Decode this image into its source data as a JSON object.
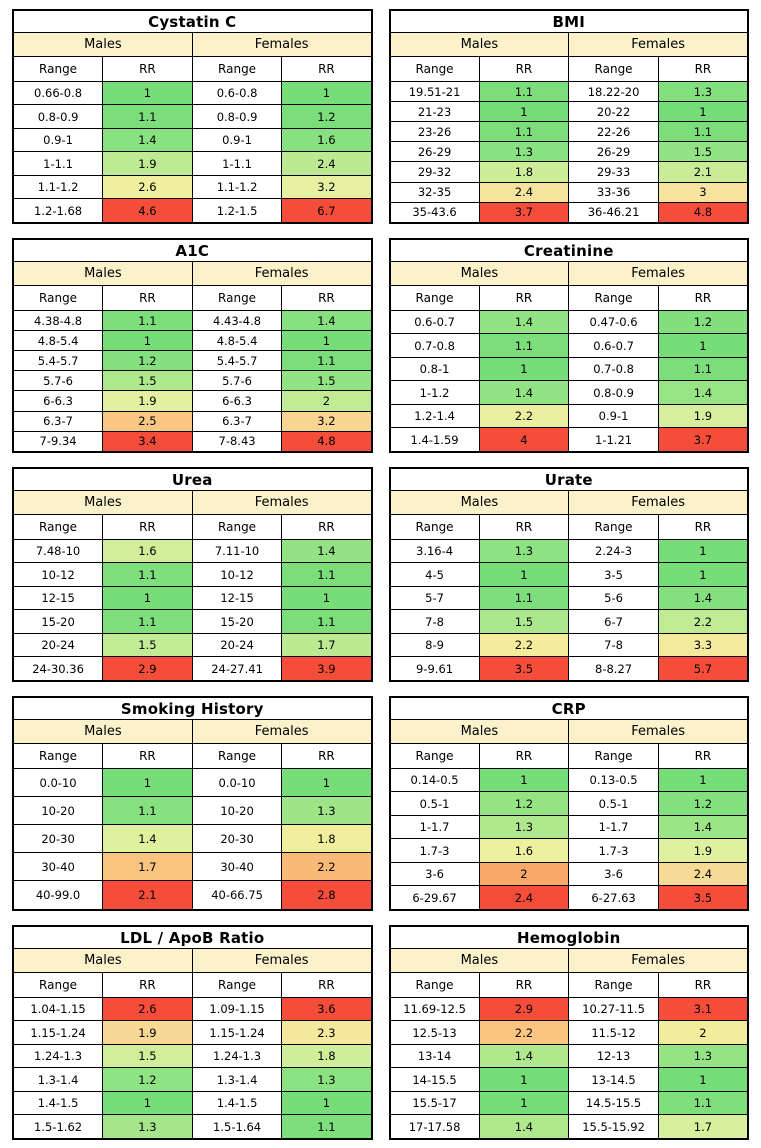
{
  "labels": {
    "males": "Males",
    "females": "Females",
    "range": "Range",
    "rr": "RR"
  },
  "style": {
    "group_header_bg": "#FBF1CA",
    "border_color": "#000000",
    "range_cell_bg": "#FFFFFF",
    "best_rr_color": "#77DD78",
    "worst_rr_color": "#F44D3A"
  },
  "colormap": {
    "note": "RR cell background: t = (rr - column_min) / (column_max - column_min), interpolated over stops",
    "stops": [
      [
        0.0,
        [
          119,
          221,
          120
        ]
      ],
      [
        0.1,
        [
          133,
          225,
          127
        ]
      ],
      [
        0.18,
        [
          163,
          230,
          137
        ]
      ],
      [
        0.25,
        [
          190,
          234,
          147
        ]
      ],
      [
        0.32,
        [
          212,
          238,
          156
        ]
      ],
      [
        0.4,
        [
          233,
          241,
          161
        ]
      ],
      [
        0.47,
        [
          242,
          238,
          156
        ]
      ],
      [
        0.53,
        [
          246,
          226,
          158
        ]
      ],
      [
        0.6,
        [
          249,
          207,
          138
        ]
      ],
      [
        0.68,
        [
          249,
          181,
          115
        ]
      ],
      [
        0.8,
        [
          247,
          136,
          80
        ]
      ],
      [
        1.0,
        [
          244,
          77,
          58
        ]
      ]
    ]
  },
  "chart_data": [
    {
      "type": "table",
      "title": "Cystatin C",
      "groups": [
        "Males",
        "Females"
      ],
      "columns": [
        "Range",
        "RR",
        "Range",
        "RR"
      ],
      "males": [
        [
          "0.66-0.8",
          1
        ],
        [
          "0.8-0.9",
          1.1
        ],
        [
          "0.9-1",
          1.4
        ],
        [
          "1-1.1",
          1.9
        ],
        [
          "1.1-1.2",
          2.6
        ],
        [
          "1.2-1.68",
          4.6
        ]
      ],
      "females": [
        [
          "0.6-0.8",
          1
        ],
        [
          "0.8-0.9",
          1.2
        ],
        [
          "0.9-1",
          1.6
        ],
        [
          "1-1.1",
          2.4
        ],
        [
          "1.1-1.2",
          3.2
        ],
        [
          "1.2-1.5",
          6.7
        ]
      ]
    },
    {
      "type": "table",
      "title": "BMI",
      "groups": [
        "Males",
        "Females"
      ],
      "columns": [
        "Range",
        "RR",
        "Range",
        "RR"
      ],
      "males": [
        [
          "19.51-21",
          1.1
        ],
        [
          "21-23",
          1
        ],
        [
          "23-26",
          1.1
        ],
        [
          "26-29",
          1.3
        ],
        [
          "29-32",
          1.8
        ],
        [
          "32-35",
          2.4
        ],
        [
          "35-43.6",
          3.7
        ]
      ],
      "females": [
        [
          "18.22-20",
          1.3
        ],
        [
          "20-22",
          1
        ],
        [
          "22-26",
          1.1
        ],
        [
          "26-29",
          1.5
        ],
        [
          "29-33",
          2.1
        ],
        [
          "33-36",
          3
        ],
        [
          "36-46.21",
          4.8
        ]
      ]
    },
    {
      "type": "table",
      "title": "A1C",
      "groups": [
        "Males",
        "Females"
      ],
      "columns": [
        "Range",
        "RR",
        "Range",
        "RR"
      ],
      "males": [
        [
          "4.38-4.8",
          1.1
        ],
        [
          "4.8-5.4",
          1
        ],
        [
          "5.4-5.7",
          1.2
        ],
        [
          "5.7-6",
          1.5
        ],
        [
          "6-6.3",
          1.9
        ],
        [
          "6.3-7",
          2.5
        ],
        [
          "7-9.34",
          3.4
        ]
      ],
      "females": [
        [
          "4.43-4.8",
          1.4
        ],
        [
          "4.8-5.4",
          1
        ],
        [
          "5.4-5.7",
          1.1
        ],
        [
          "5.7-6",
          1.5
        ],
        [
          "6-6.3",
          2
        ],
        [
          "6.3-7",
          3.2
        ],
        [
          "7-8.43",
          4.8
        ]
      ]
    },
    {
      "type": "table",
      "title": "Creatinine",
      "groups": [
        "Males",
        "Females"
      ],
      "columns": [
        "Range",
        "RR",
        "Range",
        "RR"
      ],
      "males": [
        [
          "0.6-0.7",
          1.4
        ],
        [
          "0.7-0.8",
          1.1
        ],
        [
          "0.8-1",
          1
        ],
        [
          "1-1.2",
          1.4
        ],
        [
          "1.2-1.4",
          2.2
        ],
        [
          "1.4-1.59",
          4
        ]
      ],
      "females": [
        [
          "0.47-0.6",
          1.2
        ],
        [
          "0.6-0.7",
          1
        ],
        [
          "0.7-0.8",
          1.1
        ],
        [
          "0.8-0.9",
          1.4
        ],
        [
          "0.9-1",
          1.9
        ],
        [
          "1-1.21",
          3.7
        ]
      ]
    },
    {
      "type": "table",
      "title": "Urea",
      "groups": [
        "Males",
        "Females"
      ],
      "columns": [
        "Range",
        "RR",
        "Range",
        "RR"
      ],
      "males": [
        [
          "7.48-10",
          1.6
        ],
        [
          "10-12",
          1.1
        ],
        [
          "12-15",
          1
        ],
        [
          "15-20",
          1.1
        ],
        [
          "20-24",
          1.5
        ],
        [
          "24-30.36",
          2.9
        ]
      ],
      "females": [
        [
          "7.11-10",
          1.4
        ],
        [
          "10-12",
          1.1
        ],
        [
          "12-15",
          1
        ],
        [
          "15-20",
          1.1
        ],
        [
          "20-24",
          1.7
        ],
        [
          "24-27.41",
          3.9
        ]
      ]
    },
    {
      "type": "table",
      "title": "Urate",
      "groups": [
        "Males",
        "Females"
      ],
      "columns": [
        "Range",
        "RR",
        "Range",
        "RR"
      ],
      "males": [
        [
          "3.16-4",
          1.3
        ],
        [
          "4-5",
          1
        ],
        [
          "5-7",
          1.1
        ],
        [
          "7-8",
          1.5
        ],
        [
          "8-9",
          2.2
        ],
        [
          "9-9.61",
          3.5
        ]
      ],
      "females": [
        [
          "2.24-3",
          1
        ],
        [
          "3-5",
          1
        ],
        [
          "5-6",
          1.4
        ],
        [
          "6-7",
          2.2
        ],
        [
          "7-8",
          3.3
        ],
        [
          "8-8.27",
          5.7
        ]
      ]
    },
    {
      "type": "table",
      "title": "Smoking History",
      "groups": [
        "Males",
        "Females"
      ],
      "columns": [
        "Range",
        "RR",
        "Range",
        "RR"
      ],
      "males": [
        [
          "0.0-10",
          1
        ],
        [
          "10-20",
          1.1
        ],
        [
          "20-30",
          1.4
        ],
        [
          "30-40",
          1.7
        ],
        [
          "40-99.0",
          2.1
        ]
      ],
      "females": [
        [
          "0.0-10",
          1
        ],
        [
          "10-20",
          1.3
        ],
        [
          "20-30",
          1.8
        ],
        [
          "30-40",
          2.2
        ],
        [
          "40-66.75",
          2.8
        ]
      ]
    },
    {
      "type": "table",
      "title": "CRP",
      "groups": [
        "Males",
        "Females"
      ],
      "columns": [
        "Range",
        "RR",
        "Range",
        "RR"
      ],
      "males": [
        [
          "0.14-0.5",
          1
        ],
        [
          "0.5-1",
          1.2
        ],
        [
          "1-1.7",
          1.3
        ],
        [
          "1.7-3",
          1.6
        ],
        [
          "3-6",
          2
        ],
        [
          "6-29.67",
          2.4
        ]
      ],
      "females": [
        [
          "0.13-0.5",
          1
        ],
        [
          "0.5-1",
          1.2
        ],
        [
          "1-1.7",
          1.4
        ],
        [
          "1.7-3",
          1.9
        ],
        [
          "3-6",
          2.4
        ],
        [
          "6-27.63",
          3.5
        ]
      ]
    },
    {
      "type": "table",
      "title": "LDL / ApoB Ratio",
      "groups": [
        "Males",
        "Females"
      ],
      "columns": [
        "Range",
        "RR",
        "Range",
        "RR"
      ],
      "males": [
        [
          "1.04-1.15",
          2.6
        ],
        [
          "1.15-1.24",
          1.9
        ],
        [
          "1.24-1.3",
          1.5
        ],
        [
          "1.3-1.4",
          1.2
        ],
        [
          "1.4-1.5",
          1
        ],
        [
          "1.5-1.62",
          1.3
        ]
      ],
      "females": [
        [
          "1.09-1.15",
          3.6
        ],
        [
          "1.15-1.24",
          2.3
        ],
        [
          "1.24-1.3",
          1.8
        ],
        [
          "1.3-1.4",
          1.3
        ],
        [
          "1.4-1.5",
          1
        ],
        [
          "1.5-1.64",
          1.1
        ]
      ]
    },
    {
      "type": "table",
      "title": "Hemoglobin",
      "groups": [
        "Males",
        "Females"
      ],
      "columns": [
        "Range",
        "RR",
        "Range",
        "RR"
      ],
      "males": [
        [
          "11.69-12.5",
          2.9
        ],
        [
          "12.5-13",
          2.2
        ],
        [
          "13-14",
          1.4
        ],
        [
          "14-15.5",
          1
        ],
        [
          "15.5-17",
          1
        ],
        [
          "17-17.58",
          1.4
        ]
      ],
      "females": [
        [
          "10.27-11.5",
          3.1
        ],
        [
          "11.5-12",
          2
        ],
        [
          "12-13",
          1.3
        ],
        [
          "13-14.5",
          1
        ],
        [
          "14.5-15.5",
          1.1
        ],
        [
          "15.5-15.92",
          1.7
        ]
      ]
    }
  ]
}
